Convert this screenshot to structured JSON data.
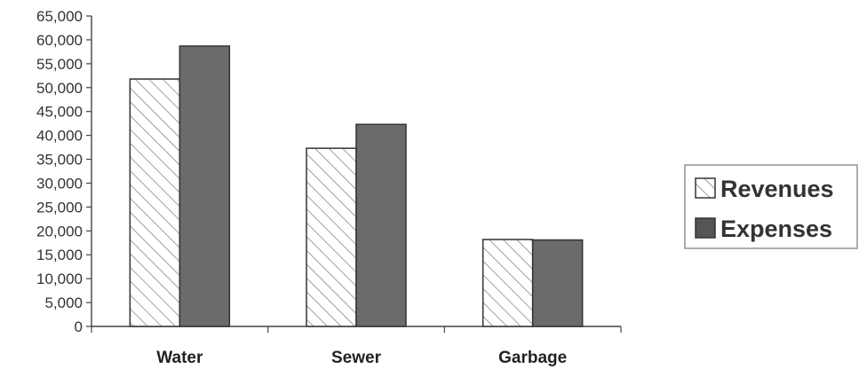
{
  "chart_data": {
    "type": "bar",
    "categories": [
      "Water",
      "Sewer",
      "Garbage"
    ],
    "series": [
      {
        "name": "Revenues",
        "values": [
          51800,
          37300,
          18200
        ],
        "pattern": "hatched",
        "color": "#ffffff"
      },
      {
        "name": "Expenses",
        "values": [
          58700,
          42300,
          18100
        ],
        "pattern": "solid",
        "color": "#6b6b6b"
      }
    ],
    "ylim": [
      0,
      65000
    ],
    "yticks": [
      0,
      5000,
      10000,
      15000,
      20000,
      25000,
      30000,
      35000,
      40000,
      45000,
      50000,
      55000,
      60000,
      65000
    ],
    "ytick_labels": [
      "0",
      "5,000",
      "10,000",
      "15,000",
      "20,000",
      "25,000",
      "30,000",
      "35,000",
      "40,000",
      "45,000",
      "50,000",
      "55,000",
      "60,000",
      "65,000"
    ],
    "grid": false,
    "legend_position": "right"
  }
}
